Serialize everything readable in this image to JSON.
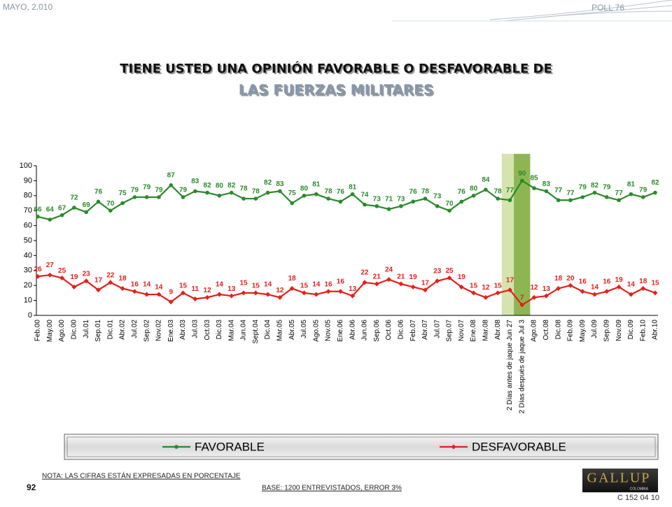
{
  "header": {
    "date": "MAYO, 2.010",
    "poll": "POLL 76"
  },
  "chart_data": {
    "type": "line",
    "title": "TIENE USTED UNA OPINIÓN FAVORABLE O DESFAVORABLE DE",
    "subtitle": "LAS FUERZAS MILITARES",
    "categories": [
      "Feb.00",
      "May.00",
      "Ago.00",
      "Dic.00",
      "Jul.01",
      "Sep.01",
      "Dic.01",
      "Abr.02",
      "Jul.02",
      "Sep.02",
      "Nov.02",
      "Ene.03",
      "Abr.03",
      "Jul.03",
      "Oct.03",
      "Dic.03",
      "Mar.04",
      "Jun.04",
      "Sept.04",
      "Dic.04",
      "Mar.05",
      "Abr.05",
      "Jul.05",
      "Ago.05",
      "Nov.05",
      "Ene.06",
      "Abr.06",
      "Jun.06",
      "Sep.06",
      "Oct.06",
      "Dic.06",
      "Feb.07",
      "Abr.07",
      "Jul.07",
      "Sep.07",
      "Nov.07",
      "Ene.08",
      "Mar.08",
      "Abr.08",
      "2 Días antes de jaque Jun 27",
      "2 Días después de jaque Jul 3",
      "Ago.08",
      "Oct.08",
      "Dic.08",
      "Feb.09",
      "May.09",
      "Jul.09",
      "Sep.09",
      "Nov.09",
      "Dic.09",
      "Feb.10",
      "Abr.10"
    ],
    "series": [
      {
        "name": "FAVORABLE",
        "color": "#2a8a2a",
        "marker": "circle",
        "values": [
          66,
          64,
          67,
          72,
          69,
          76,
          70,
          75,
          79,
          79,
          79,
          87,
          79,
          83,
          82,
          80,
          82,
          78,
          78,
          82,
          83,
          75,
          80,
          81,
          78,
          76,
          81,
          74,
          73,
          71,
          73,
          76,
          78,
          73,
          70,
          76,
          80,
          84,
          78,
          77,
          90,
          85,
          83,
          77,
          77,
          79,
          82,
          79,
          77,
          81,
          79,
          82
        ]
      },
      {
        "name": "DESFAVORABLE",
        "color": "#e3201b",
        "marker": "diamond",
        "values": [
          26,
          27,
          25,
          19,
          23,
          17,
          22,
          18,
          16,
          14,
          14,
          9,
          15,
          11,
          12,
          14,
          13,
          15,
          15,
          14,
          12,
          18,
          15,
          14,
          16,
          16,
          13,
          22,
          21,
          24,
          21,
          19,
          17,
          23,
          25,
          19,
          15,
          12,
          15,
          17,
          7,
          12,
          13,
          18,
          20,
          16,
          14,
          16,
          19,
          14,
          18,
          15
        ]
      }
    ],
    "ylim": [
      0,
      100
    ],
    "yticks": [
      0,
      10,
      20,
      30,
      40,
      50,
      60,
      70,
      80,
      90,
      100
    ],
    "grid": false,
    "highlight_categories": [
      {
        "index": 39,
        "color": "#d5e3ae"
      },
      {
        "index": 40,
        "color": "#8db653"
      }
    ]
  },
  "footer": {
    "note": "NOTA: LAS CIFRAS ESTÁN EXPRESADAS EN PORCENTAJE",
    "page": "92",
    "base": "BASE: 1200 ENTREVISTADOS, ERROR 3%",
    "code": "C 152 04 10",
    "logo": "GALLUP",
    "logo_sub": "COLOMBIA"
  }
}
